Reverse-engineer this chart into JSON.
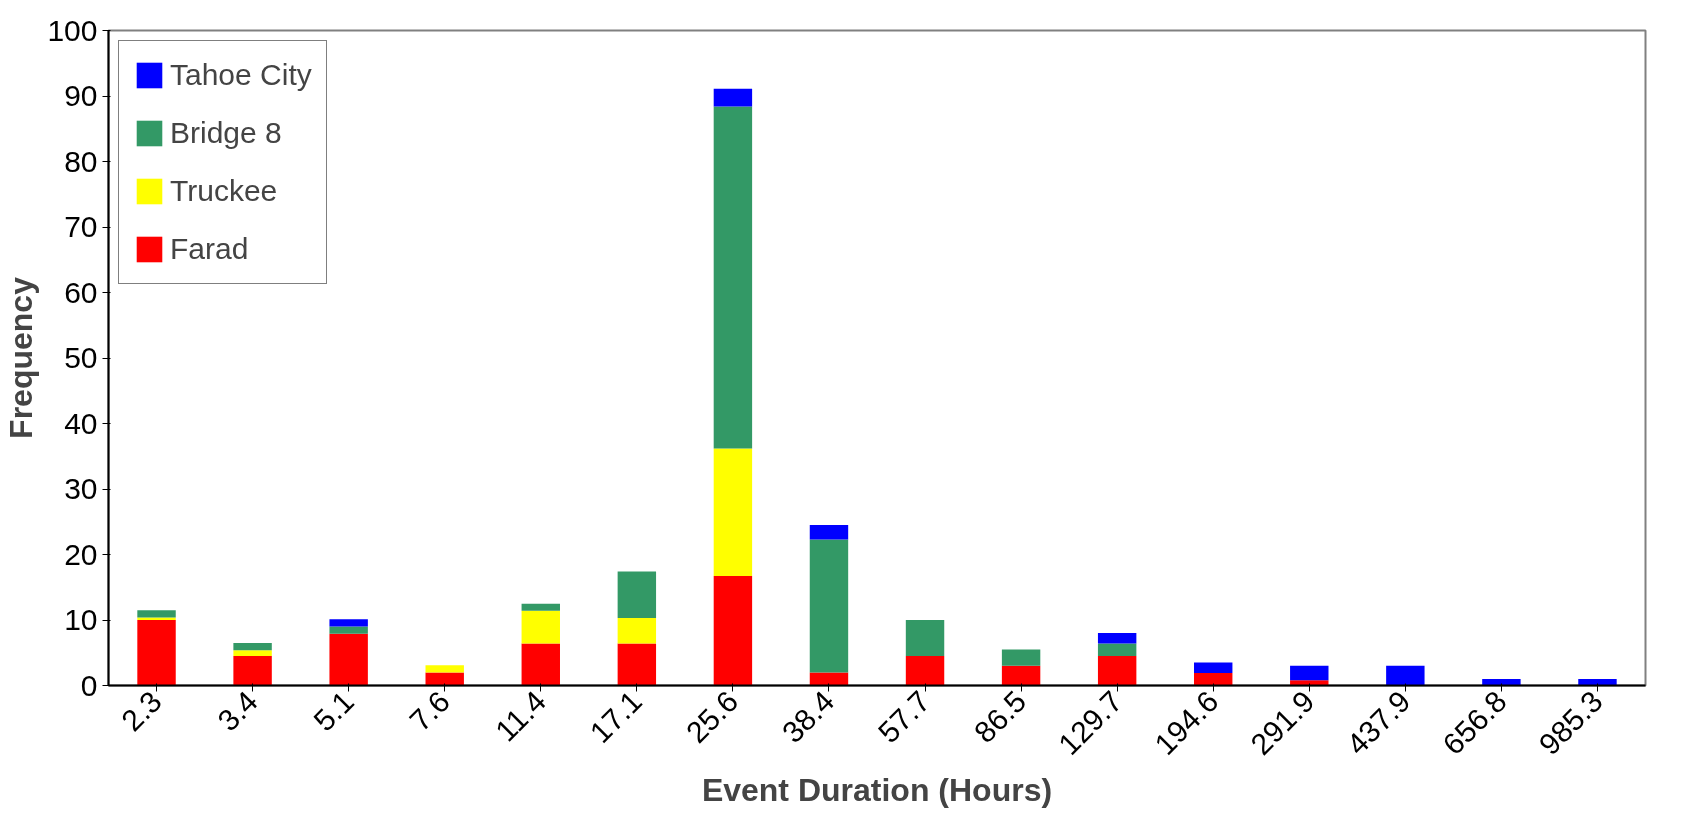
{
  "chart_data": {
    "type": "bar",
    "stacked": true,
    "xlabel": "Event Duration (Hours)",
    "ylabel": "Frequency",
    "categories": [
      "2.3",
      "3.4",
      "5.1",
      "7.6",
      "11.4",
      "17.1",
      "25.6",
      "38.4",
      "57.7",
      "86.5",
      "129.7",
      "194.6",
      "291.9",
      "437.9",
      "656.8",
      "985.3"
    ],
    "series": [
      {
        "name": "Farad",
        "color": "#ff0000",
        "values": [
          10,
          4.5,
          7.9,
          2,
          6.4,
          6.4,
          16.7,
          2,
          4.5,
          3,
          4.5,
          1.9,
          0.8,
          0,
          0,
          0
        ]
      },
      {
        "name": "Truckee",
        "color": "#ffff00",
        "values": [
          0.4,
          0.9,
          0,
          1.1,
          5,
          3.9,
          19.5,
          0,
          0,
          0,
          0,
          0,
          0,
          0,
          0,
          0
        ]
      },
      {
        "name": "Bridge 8",
        "color": "#339966",
        "values": [
          1.1,
          1.1,
          1.1,
          0,
          1.1,
          7.1,
          52.2,
          20.3,
          5.5,
          2.5,
          1.9,
          0,
          0,
          0,
          0,
          0
        ]
      },
      {
        "name": "Tahoe City",
        "color": "#0000ff",
        "values": [
          0,
          0,
          1.1,
          0,
          0,
          0,
          2.7,
          2.2,
          0,
          0,
          1.6,
          1.6,
          2.2,
          3,
          1,
          1
        ]
      }
    ],
    "ylim": [
      0,
      100
    ],
    "yticks": [
      0,
      10,
      20,
      30,
      40,
      50,
      60,
      70,
      80,
      90,
      100
    ],
    "grid": false,
    "legend": "top left"
  }
}
